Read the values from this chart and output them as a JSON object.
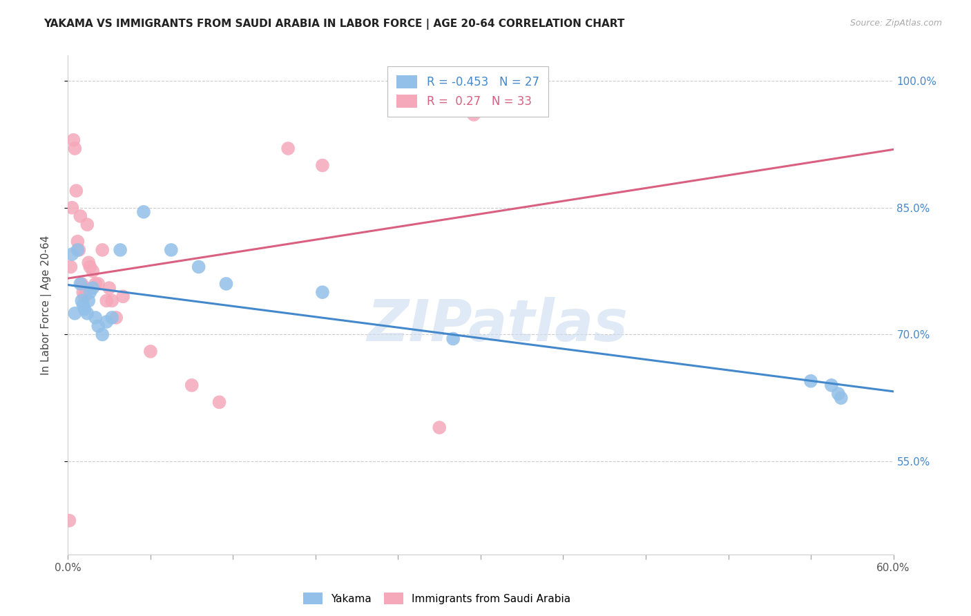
{
  "title": "YAKAMA VS IMMIGRANTS FROM SAUDI ARABIA IN LABOR FORCE | AGE 20-64 CORRELATION CHART",
  "source": "Source: ZipAtlas.com",
  "ylabel": "In Labor Force | Age 20-64",
  "watermark": "ZIPatlas",
  "xmin": 0.0,
  "xmax": 0.6,
  "ymin": 0.44,
  "ymax": 1.03,
  "yticks": [
    0.55,
    0.7,
    0.85,
    1.0
  ],
  "ytick_labels": [
    "55.0%",
    "70.0%",
    "85.0%",
    "100.0%"
  ],
  "xtick_positions": [
    0.0,
    0.06,
    0.12,
    0.18,
    0.24,
    0.3,
    0.36,
    0.42,
    0.48,
    0.54,
    0.6
  ],
  "xtick_labels_show": [
    "0.0%",
    "",
    "",
    "",
    "",
    "",
    "",
    "",
    "",
    "",
    "60.0%"
  ],
  "blue_R": -0.453,
  "blue_N": 27,
  "pink_R": 0.27,
  "pink_N": 33,
  "blue_color": "#92c0e8",
  "pink_color": "#f5a8ba",
  "blue_line_color": "#4488cc",
  "pink_line_color": "#d96080",
  "blue_x": [
    0.003,
    0.005,
    0.007,
    0.009,
    0.01,
    0.011,
    0.012,
    0.014,
    0.015,
    0.016,
    0.018,
    0.02,
    0.022,
    0.025,
    0.028,
    0.032,
    0.038,
    0.055,
    0.075,
    0.095,
    0.115,
    0.185,
    0.28,
    0.54,
    0.555,
    0.56,
    0.562
  ],
  "blue_y": [
    0.795,
    0.725,
    0.8,
    0.76,
    0.74,
    0.735,
    0.73,
    0.725,
    0.74,
    0.75,
    0.755,
    0.72,
    0.71,
    0.7,
    0.715,
    0.72,
    0.8,
    0.845,
    0.8,
    0.78,
    0.76,
    0.75,
    0.695,
    0.645,
    0.64,
    0.63,
    0.625
  ],
  "pink_x": [
    0.001,
    0.002,
    0.003,
    0.004,
    0.005,
    0.006,
    0.007,
    0.008,
    0.009,
    0.01,
    0.011,
    0.012,
    0.013,
    0.014,
    0.015,
    0.016,
    0.018,
    0.02,
    0.022,
    0.025,
    0.028,
    0.03,
    0.032,
    0.035,
    0.04,
    0.06,
    0.09,
    0.11,
    0.16,
    0.185,
    0.27,
    0.29,
    0.295
  ],
  "pink_y": [
    0.48,
    0.78,
    0.85,
    0.93,
    0.92,
    0.87,
    0.81,
    0.8,
    0.84,
    0.76,
    0.75,
    0.745,
    0.755,
    0.83,
    0.785,
    0.78,
    0.775,
    0.76,
    0.76,
    0.8,
    0.74,
    0.755,
    0.74,
    0.72,
    0.745,
    0.68,
    0.64,
    0.62,
    0.92,
    0.9,
    0.59,
    0.97,
    0.96
  ],
  "title_fontsize": 11,
  "tick_color_right": "#4488cc",
  "grid_color": "#cccccc",
  "watermark_color": "#ccddf0"
}
